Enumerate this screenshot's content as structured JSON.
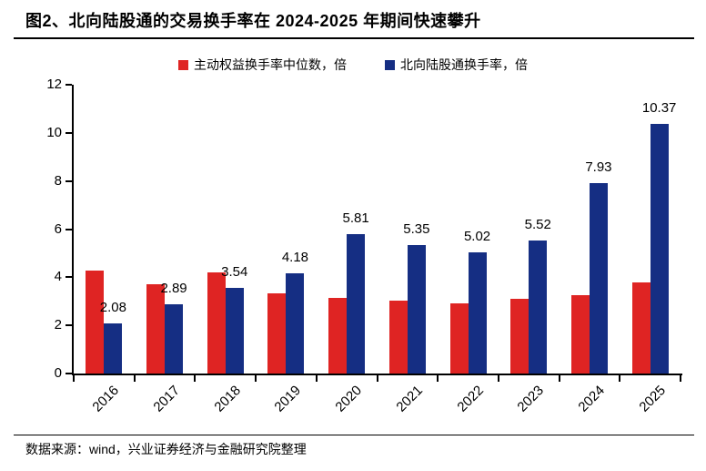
{
  "title": "图2、北向陆股通的交易换手率在 2024-2025 年期间快速攀升",
  "legend": [
    {
      "label": "主动权益换手率中位数，倍",
      "color": "#DF2423"
    },
    {
      "label": "北向陆股通换手率，倍",
      "color": "#152E83"
    }
  ],
  "colors": {
    "red": "#DF2423",
    "blue": "#152E83",
    "axis": "#000000",
    "text": "#000000",
    "background": "#FFFFFF"
  },
  "chart_data": {
    "type": "bar",
    "title": "图2、北向陆股通的交易换手率在 2024-2025 年期间快速攀升",
    "categories": [
      "2016",
      "2017",
      "2018",
      "2019",
      "2020",
      "2021",
      "2022",
      "2023",
      "2024",
      "2025"
    ],
    "series": [
      {
        "name": "主动权益换手率中位数，倍",
        "color": "#DF2423",
        "values": [
          4.28,
          3.71,
          4.21,
          3.35,
          3.14,
          3.02,
          2.91,
          3.11,
          3.25,
          3.77
        ],
        "data_labels": false
      },
      {
        "name": "北向陆股通换手率，倍",
        "color": "#152E83",
        "values": [
          2.08,
          2.89,
          3.54,
          4.18,
          5.81,
          5.35,
          5.02,
          5.52,
          7.93,
          10.37
        ],
        "data_labels": true,
        "label_texts": [
          "2.08",
          "2.89",
          "3.54",
          "4.18",
          "5.81",
          "5.35",
          "5.02",
          "5.52",
          "7.93",
          "10.37"
        ]
      }
    ],
    "xlabel": "",
    "ylabel": "",
    "ylim": [
      0,
      12
    ],
    "ytick_step": 2,
    "yticks": [
      "0",
      "2",
      "4",
      "6",
      "8",
      "10",
      "12"
    ],
    "grid": false,
    "legend_position": "top"
  },
  "footer": {
    "source_text": "数据来源：wind，兴业证券经济与金融研究院整理"
  }
}
